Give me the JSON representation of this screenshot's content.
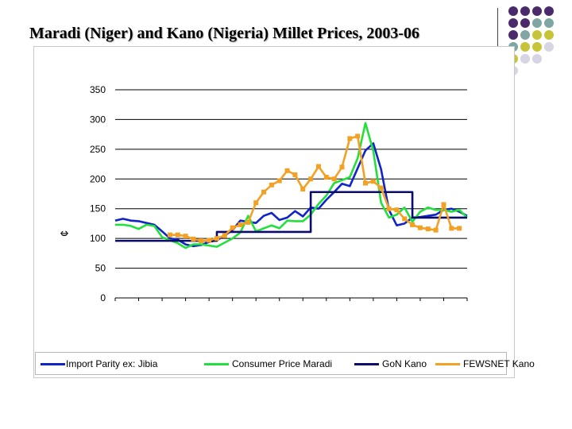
{
  "slide": {
    "title": "Maradi (Niger) and Kano (Nigeria) Millet Prices, 2003-06",
    "palette": [
      "#4b2a6b",
      "#7fa5a5",
      "#c8c43a",
      "#d7d4e4"
    ]
  },
  "chart_data": {
    "type": "line",
    "title": "",
    "xlabel": "",
    "ylabel": "¢",
    "ylim": [
      0,
      350
    ],
    "yticks": [
      0,
      50,
      100,
      150,
      200,
      250,
      300,
      350
    ],
    "grid": true,
    "legend_position": "bottom",
    "x_points": 46,
    "series": [
      {
        "name": "Import Parity ex: Jibia",
        "color": "#1024c8",
        "values": [
          130,
          133,
          130,
          129,
          126,
          123,
          112,
          100,
          98,
          90,
          87,
          89,
          94,
          97,
          105,
          114,
          130,
          128,
          126,
          138,
          143,
          131,
          135,
          146,
          137,
          152,
          150,
          165,
          178,
          192,
          188,
          218,
          248,
          260,
          216,
          148,
          122,
          125,
          135,
          136,
          138,
          140,
          148,
          150,
          145,
          138
        ]
      },
      {
        "name": "Consumer Price Maradi",
        "color": "#22e03c",
        "values": [
          123,
          123,
          121,
          116,
          123,
          121,
          102,
          97,
          92,
          84,
          90,
          90,
          88,
          86,
          93,
          100,
          110,
          138,
          112,
          117,
          122,
          117,
          130,
          129,
          129,
          140,
          158,
          172,
          193,
          198,
          203,
          235,
          294,
          247,
          160,
          135,
          140,
          152,
          128,
          145,
          152,
          148,
          148,
          145,
          148,
          135
        ]
      },
      {
        "name": "GoN Kano",
        "color": "#0b0b6e",
        "values": [
          96,
          96,
          96,
          96,
          96,
          96,
          96,
          96,
          96,
          96,
          96,
          96,
          96,
          111,
          111,
          111,
          111,
          111,
          111,
          111,
          111,
          111,
          111,
          111,
          111,
          178,
          178,
          178,
          178,
          178,
          178,
          178,
          178,
          178,
          178,
          178,
          178,
          178,
          135,
          135,
          135,
          135,
          135,
          135,
          135,
          135
        ]
      },
      {
        "name": "FEWSNET Kano",
        "color": "#f2a124",
        "start_index": 7,
        "values": [
          106,
          106,
          104,
          99,
          96,
          97,
          100,
          105,
          118,
          123,
          127,
          160,
          178,
          190,
          197,
          214,
          207,
          183,
          200,
          221,
          203,
          200,
          220,
          268,
          272,
          193,
          196,
          185,
          150,
          148,
          133,
          123,
          118,
          116,
          114,
          157,
          117,
          117
        ]
      }
    ]
  }
}
